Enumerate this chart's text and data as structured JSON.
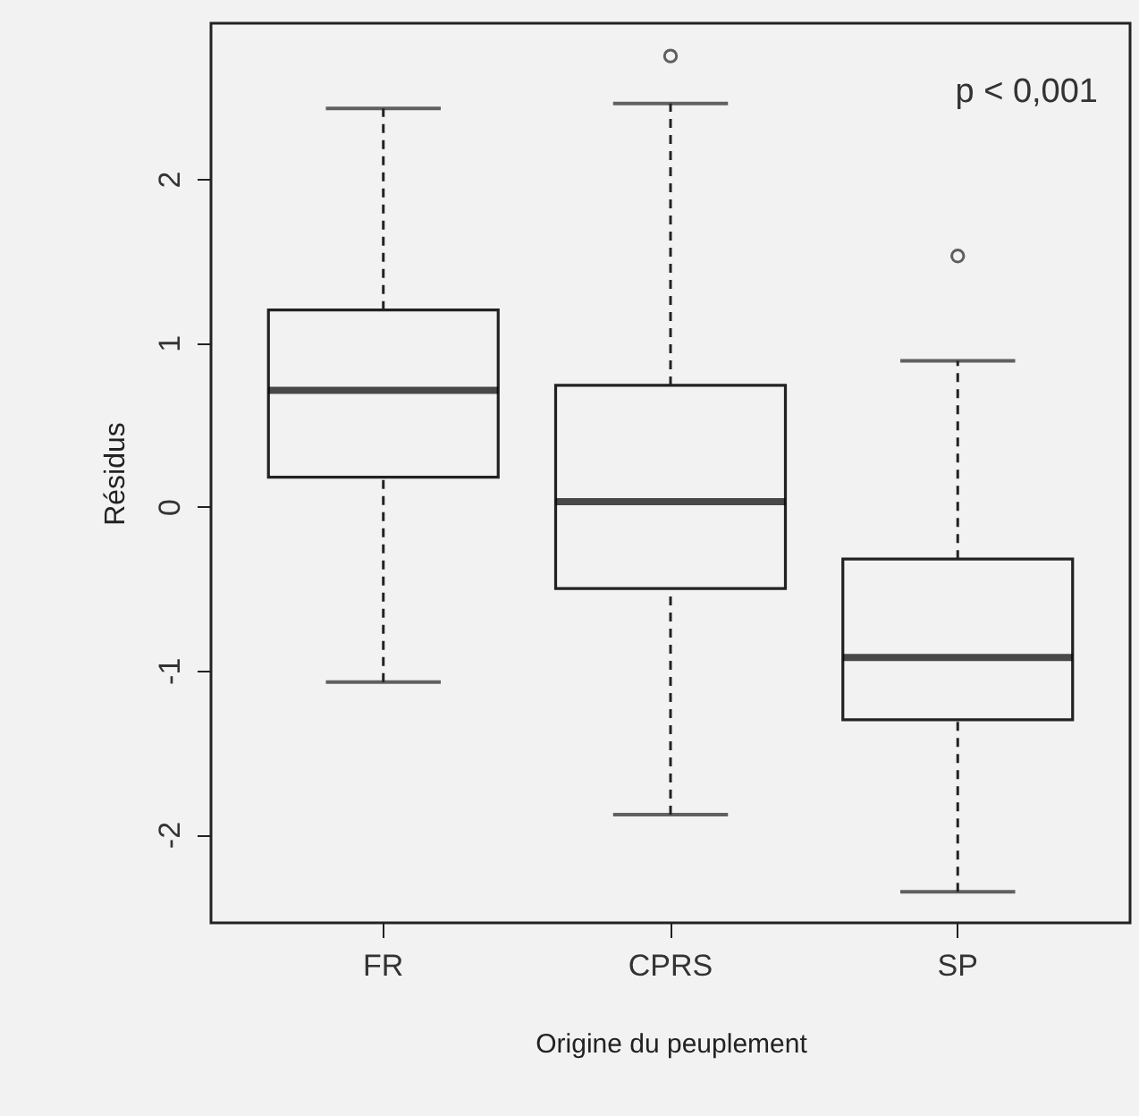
{
  "chart_data": {
    "type": "box",
    "xlabel": "Origine du peuplement",
    "ylabel": "Résidus",
    "categories": [
      "FR",
      "CPRS",
      "SP"
    ],
    "boxes": [
      {
        "low": -1.07,
        "q1": 0.18,
        "median": 0.71,
        "q3": 1.2,
        "high": 2.43
      },
      {
        "low": -1.88,
        "q1": -0.5,
        "median": 0.03,
        "q3": 0.74,
        "high": 2.46,
        "outliers": [
          2.75
        ]
      },
      {
        "low": -2.35,
        "q1": -1.3,
        "median": -0.92,
        "q3": -0.32,
        "high": 0.89,
        "outliers": [
          1.53
        ]
      }
    ],
    "ylim": [
      -2.54,
      2.95
    ],
    "yticks": [
      -2,
      -1,
      0,
      1,
      2
    ],
    "annotations": [
      "p < 0,001"
    ]
  }
}
